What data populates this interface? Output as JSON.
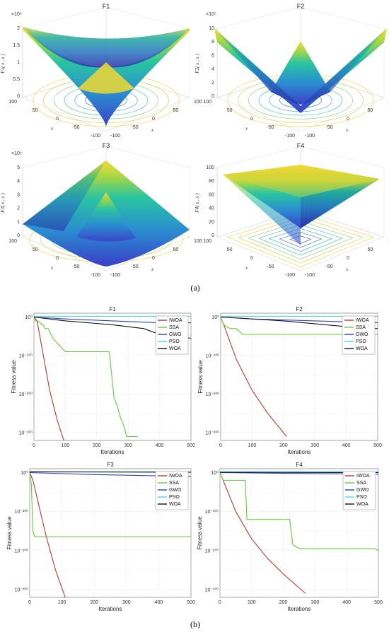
{
  "panel_labels": {
    "a": "(a)",
    "b": "(b)"
  },
  "surfaces": [
    {
      "title": "F1",
      "zlabel": "F1( x , x )",
      "zmult": "×10⁴",
      "zticks": [
        "0",
        "0.5",
        "1",
        "1.5",
        "2"
      ],
      "x1label": "x",
      "x2label": "x",
      "x1ticks": [
        "-100",
        "-50",
        "0",
        "50",
        "100"
      ],
      "x2ticks": [
        "-100",
        "-50",
        "0",
        "50",
        "100"
      ],
      "shape": "bowl",
      "contour": "circle"
    },
    {
      "title": "F2",
      "zlabel": "F2( x , x )",
      "zmult": "×10⁵",
      "zticks": [
        "0",
        "2",
        "4",
        "6",
        "8",
        "10"
      ],
      "x1label": "x",
      "x2label": "x",
      "x1ticks": [
        "-100",
        "-50",
        "0",
        "50",
        "100"
      ],
      "x2ticks": [
        "-100",
        "-50",
        "0",
        "50",
        "100"
      ],
      "shape": "cross",
      "contour": "circle"
    },
    {
      "title": "F3",
      "zlabel": "F3( x , x )",
      "zmult": "×10⁴",
      "zticks": [
        "0",
        "1",
        "2",
        "3",
        "4",
        "5"
      ],
      "x1label": "x",
      "x2label": "x",
      "x1ticks": [
        "-100",
        "-50",
        "0",
        "50",
        "100"
      ],
      "x2ticks": [
        "-100",
        "-50",
        "0",
        "50",
        "100"
      ],
      "shape": "valley",
      "contour": "ellipse"
    },
    {
      "title": "F4",
      "zlabel": "F4( x , x )",
      "zmult": "",
      "zticks": [
        "0",
        "20",
        "40",
        "60",
        "80",
        "100"
      ],
      "x1label": "x",
      "x2label": "x",
      "x1ticks": [
        "-100",
        "-50",
        "0",
        "50",
        "100"
      ],
      "x2ticks": [
        "-100",
        "-50",
        "0",
        "50",
        "100"
      ],
      "shape": "pyramid",
      "contour": "square"
    }
  ],
  "chart_data": [
    {
      "type": "line",
      "title": "F1",
      "xlabel": "Iterations",
      "ylabel": "Fitness value",
      "xlim": [
        0,
        500
      ],
      "ylim_log10": [
        -320,
        10
      ],
      "ytick_labels": [
        "10⁰",
        "10⁻¹⁰⁰",
        "10⁻²⁰⁰",
        "10⁻³⁰⁰"
      ],
      "xticks": [
        "0",
        "100",
        "200",
        "300",
        "400",
        "500"
      ],
      "grid": true,
      "legend": "top-right",
      "series": [
        {
          "name": "IWOA",
          "color": "#c0392b",
          "x": [
            0,
            10,
            50,
            75,
            95
          ],
          "log10_y": [
            0,
            -10,
            -190,
            -270,
            -320
          ]
        },
        {
          "name": "SSA",
          "color": "#66cc33",
          "x": [
            0,
            5,
            10,
            20,
            25,
            30,
            35,
            45,
            60,
            100,
            240,
            250,
            255,
            265,
            275,
            285,
            295,
            330
          ],
          "log10_y": [
            0,
            -10,
            -10,
            -15,
            -20,
            -20,
            -30,
            -30,
            -55,
            -90,
            -90,
            -170,
            -210,
            -230,
            -260,
            -280,
            -310,
            -310
          ]
        },
        {
          "name": "GWO",
          "color": "#2e3fbf",
          "x": [
            0,
            100,
            250,
            400,
            500
          ],
          "log10_y": [
            0,
            -5,
            -10,
            -15,
            -15
          ]
        },
        {
          "name": "PSO",
          "color": "#4fd8e6",
          "x": [
            0,
            500
          ],
          "log10_y": [
            2,
            2
          ]
        },
        {
          "name": "WOA",
          "color": "#111111",
          "x": [
            0,
            100,
            250,
            350,
            400,
            450,
            500
          ],
          "log10_y": [
            0,
            -10,
            -20,
            -30,
            -45,
            -50,
            -55
          ]
        }
      ]
    },
    {
      "type": "line",
      "title": "F2",
      "xlabel": "Iterations",
      "ylabel": "Fitness value",
      "xlim": [
        0,
        500
      ],
      "ylim_log10": [
        -320,
        10
      ],
      "ytick_labels": [
        "10⁰",
        "10⁻¹⁰⁰",
        "10⁻²⁰⁰",
        "10⁻³⁰⁰"
      ],
      "xticks": [
        "0",
        "100",
        "200",
        "300",
        "400",
        "500"
      ],
      "grid": true,
      "legend": "top-right",
      "series": [
        {
          "name": "IWOA",
          "color": "#c0392b",
          "x": [
            0,
            10,
            50,
            100,
            150,
            210
          ],
          "log10_y": [
            0,
            -20,
            -110,
            -190,
            -250,
            -310
          ]
        },
        {
          "name": "SSA",
          "color": "#66cc33",
          "x": [
            0,
            5,
            10,
            20,
            30,
            50,
            70,
            500
          ],
          "log10_y": [
            0,
            -10,
            -20,
            -25,
            -30,
            -30,
            -45,
            -45
          ]
        },
        {
          "name": "GWO",
          "color": "#2e3fbf",
          "x": [
            0,
            100,
            300,
            500
          ],
          "log10_y": [
            0,
            -5,
            -10,
            -15
          ]
        },
        {
          "name": "PSO",
          "color": "#4fd8e6",
          "x": [
            0,
            500
          ],
          "log10_y": [
            2,
            2
          ]
        },
        {
          "name": "WOA",
          "color": "#111111",
          "x": [
            0,
            200,
            400,
            500
          ],
          "log10_y": [
            0,
            -10,
            -25,
            -30
          ]
        }
      ]
    },
    {
      "type": "line",
      "title": "F3",
      "xlabel": "Iterations",
      "ylabel": "Fitness value",
      "xlim": [
        0,
        500
      ],
      "ylim_log10": [
        -320,
        10
      ],
      "ytick_labels": [
        "10⁰",
        "10⁻¹⁰⁰",
        "10⁻²⁰⁰",
        "10⁻³⁰⁰"
      ],
      "xticks": [
        "0",
        "100",
        "200",
        "300",
        "400",
        "500"
      ],
      "grid": true,
      "legend": "top-right",
      "series": [
        {
          "name": "IWOA",
          "color": "#c0392b",
          "x": [
            0,
            10,
            50,
            80,
            110
          ],
          "log10_y": [
            0,
            -20,
            -160,
            -250,
            -320
          ]
        },
        {
          "name": "SSA",
          "color": "#66cc33",
          "x": [
            0,
            5,
            8,
            10,
            15,
            500
          ],
          "log10_y": [
            0,
            -30,
            -100,
            -150,
            -165,
            -165
          ]
        },
        {
          "name": "GWO",
          "color": "#2e3fbf",
          "x": [
            0,
            200,
            500
          ],
          "log10_y": [
            0,
            -5,
            -10
          ]
        },
        {
          "name": "PSO",
          "color": "#4fd8e6",
          "x": [
            0,
            500
          ],
          "log10_y": [
            2,
            2
          ]
        },
        {
          "name": "WOA",
          "color": "#111111",
          "x": [
            0,
            500
          ],
          "log10_y": [
            2,
            1
          ]
        }
      ]
    },
    {
      "type": "line",
      "title": "F4",
      "xlabel": "Iterations",
      "ylabel": "Fitness value",
      "xlim": [
        0,
        500
      ],
      "ylim_log10": [
        -320,
        10
      ],
      "ytick_labels": [
        "10⁰",
        "10⁻¹⁰⁰",
        "10⁻²⁰⁰",
        "10⁻³⁰⁰"
      ],
      "xticks": [
        "0",
        "100",
        "200",
        "300",
        "400",
        "500"
      ],
      "grid": true,
      "legend": "top-right",
      "series": [
        {
          "name": "IWOA",
          "color": "#c0392b",
          "x": [
            0,
            10,
            50,
            100,
            150,
            200,
            270
          ],
          "log10_y": [
            0,
            -20,
            -100,
            -170,
            -220,
            -260,
            -310
          ]
        },
        {
          "name": "SSA",
          "color": "#66cc33",
          "x": [
            0,
            10,
            15,
            80,
            85,
            220,
            230,
            250,
            490,
            500
          ],
          "log10_y": [
            0,
            -20,
            -20,
            -20,
            -120,
            -120,
            -185,
            -195,
            -195,
            -200
          ]
        },
        {
          "name": "GWO",
          "color": "#2e3fbf",
          "x": [
            0,
            200,
            500
          ],
          "log10_y": [
            0,
            -2,
            -4
          ]
        },
        {
          "name": "PSO",
          "color": "#4fd8e6",
          "x": [
            0,
            500
          ],
          "log10_y": [
            2,
            2
          ]
        },
        {
          "name": "WOA",
          "color": "#111111",
          "x": [
            0,
            500
          ],
          "log10_y": [
            1,
            0
          ]
        }
      ]
    }
  ]
}
